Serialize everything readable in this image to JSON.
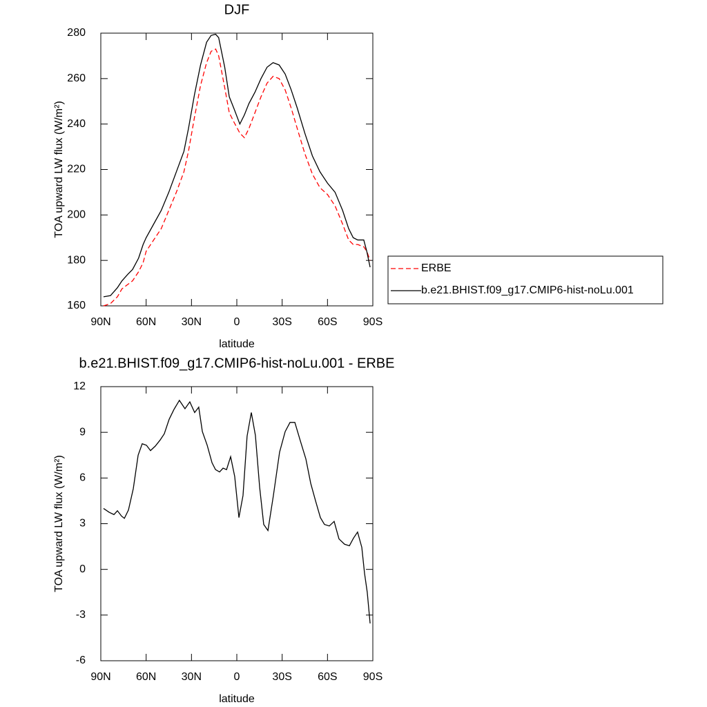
{
  "chart_data": [
    {
      "type": "line",
      "title": "DJF",
      "xlabel": "latitude",
      "ylabel": "TOA upward LW flux (W/m²)",
      "x": [
        88.2,
        83.6,
        79,
        76,
        72,
        69,
        65,
        62,
        60,
        55,
        50,
        45,
        40,
        35,
        32,
        28,
        24,
        20,
        17,
        14,
        12,
        8,
        5,
        2,
        -2,
        -5,
        -8,
        -12,
        -16,
        -20,
        -24,
        -28,
        -32,
        -36,
        -40,
        -45,
        -50,
        -55,
        -60,
        -65,
        -70,
        -74,
        -77,
        -80,
        -84,
        -86,
        -88.2
      ],
      "series": [
        {
          "name": "ERBE",
          "color": "#ff0000",
          "style": "dashed",
          "values": [
            160,
            161,
            164,
            167.5,
            169.5,
            171,
            175,
            179,
            184,
            189,
            194,
            202,
            210,
            219,
            228,
            243,
            257,
            267,
            272,
            273,
            270,
            256,
            245,
            241,
            236,
            234,
            238,
            245,
            252,
            258,
            261,
            260,
            255,
            247,
            238,
            227,
            218,
            212,
            209,
            204,
            196,
            189,
            187,
            187,
            186,
            184,
            180
          ]
        },
        {
          "name": "b.e21.BHIST.f09_g17.CMIP6-hist-noLu.001",
          "color": "#000000",
          "style": "solid",
          "values": [
            164,
            164.5,
            168,
            171,
            174,
            176,
            181,
            187,
            190,
            196,
            202,
            210,
            219,
            228,
            238,
            253,
            266,
            276,
            279,
            279.5,
            278,
            265,
            252,
            247,
            240,
            244,
            249,
            254,
            260,
            265,
            267,
            266,
            262,
            255,
            247,
            236,
            226,
            219,
            214,
            210,
            202,
            194,
            190,
            189,
            189,
            184,
            177
          ]
        }
      ],
      "xlim": [
        90,
        -90
      ],
      "xticks": [
        {
          "value": 90,
          "label": "90N"
        },
        {
          "value": 60,
          "label": "60N"
        },
        {
          "value": 30,
          "label": "30N"
        },
        0,
        {
          "value": -30,
          "label": "30S"
        },
        {
          "value": -60,
          "label": "60S"
        },
        {
          "value": -90,
          "label": "90S"
        }
      ],
      "ylim": [
        160,
        280
      ],
      "yticks": [
        160,
        180,
        200,
        220,
        240,
        260,
        280
      ],
      "grid": false,
      "legend": "right"
    },
    {
      "type": "line",
      "title": "b.e21.BHIST.f09_g17.CMIP6-hist-noLu.001 - ERBE",
      "xlabel": "latitude",
      "ylabel": "TOA upward LW flux (W/m²)",
      "x": [
        88.2,
        84.5,
        81.3,
        79.0,
        76.3,
        74.4,
        71.7,
        68.5,
        65.3,
        62.6,
        59.8,
        57.1,
        53.9,
        50.7,
        48.0,
        44.8,
        41.6,
        38.0,
        34.3,
        31.1,
        27.9,
        25.2,
        22.8,
        19.6,
        16.4,
        14.1,
        11.4,
        9.1,
        6.8,
        4.1,
        1.4,
        -1.4,
        -4.1,
        -6.8,
        -9.6,
        -12.3,
        -15.1,
        -17.8,
        -20.6,
        -24.2,
        -28.3,
        -32.0,
        -35.2,
        -38.4,
        -42.0,
        -45.7,
        -48.9,
        -52.1,
        -55.3,
        -58.0,
        -61.2,
        -64.4,
        -67.6,
        -71.3,
        -74.5,
        -77.2,
        -79.9,
        -82.7,
        -84.5,
        -86.3,
        -88.2
      ],
      "values": [
        4.0,
        3.75,
        3.6,
        3.85,
        3.5,
        3.35,
        3.9,
        5.3,
        7.5,
        8.25,
        8.15,
        7.8,
        8.1,
        8.5,
        8.9,
        9.85,
        10.5,
        11.1,
        10.55,
        11.0,
        10.3,
        10.65,
        9.05,
        8.15,
        7.0,
        6.55,
        6.4,
        6.65,
        6.55,
        7.4,
        6.1,
        3.4,
        4.85,
        8.75,
        10.3,
        8.8,
        5.4,
        2.95,
        2.55,
        4.85,
        7.7,
        9.05,
        9.65,
        9.65,
        8.45,
        7.25,
        5.65,
        4.5,
        3.4,
        2.95,
        2.85,
        3.15,
        2.0,
        1.65,
        1.55,
        2.05,
        2.45,
        1.45,
        -0.25,
        -1.5,
        -3.55
      ],
      "color": "#000000",
      "xlim": [
        90,
        -90
      ],
      "xticks": [
        {
          "value": 90,
          "label": "90N"
        },
        {
          "value": 60,
          "label": "60N"
        },
        {
          "value": 30,
          "label": "30N"
        },
        0,
        {
          "value": -30,
          "label": "30S"
        },
        {
          "value": -60,
          "label": "60S"
        },
        {
          "value": -90,
          "label": "90S"
        }
      ],
      "ylim": [
        -6,
        12
      ],
      "yticks": [
        -6,
        -3,
        0,
        3,
        6,
        9,
        12
      ],
      "grid": false
    }
  ]
}
